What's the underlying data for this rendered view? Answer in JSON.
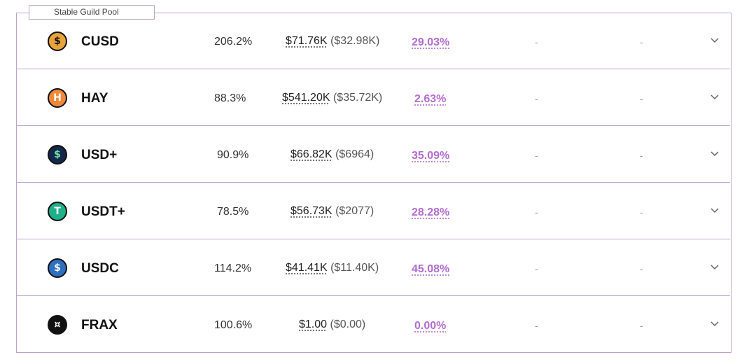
{
  "pool": {
    "title": "Stable Guild Pool"
  },
  "rows": [
    {
      "name": "CUSD",
      "ratio": "206.2%",
      "tvl": "$71.76K",
      "tvl_sub": "($32.98K)",
      "apr": "29.03%",
      "col5": "-",
      "col6": "-",
      "icon": "cusd-icon",
      "icon_bg": "#e8a33b",
      "icon_glyph": "$",
      "icon_fg": "#111"
    },
    {
      "name": "HAY",
      "ratio": "88.3%",
      "tvl": "$541.20K",
      "tvl_sub": "($35.72K)",
      "apr": "2.63%",
      "col5": "-",
      "col6": "-",
      "icon": "hay-icon",
      "icon_bg": "#f08a3a",
      "icon_glyph": "H",
      "icon_fg": "#fff"
    },
    {
      "name": "USD+",
      "ratio": "90.9%",
      "tvl": "$66.82K",
      "tvl_sub": "($6964)",
      "apr": "35.09%",
      "col5": "-",
      "col6": "-",
      "icon": "usd-plus-icon",
      "icon_bg": "#14284b",
      "icon_glyph": "$",
      "icon_fg": "#6fe3a2"
    },
    {
      "name": "USDT+",
      "ratio": "78.5%",
      "tvl": "$56.73K",
      "tvl_sub": "($2077)",
      "apr": "28.28%",
      "col5": "-",
      "col6": "-",
      "icon": "usdt-plus-icon",
      "icon_bg": "#1fb08a",
      "icon_glyph": "T",
      "icon_fg": "#fff"
    },
    {
      "name": "USDC",
      "ratio": "114.2%",
      "tvl": "$41.41K",
      "tvl_sub": "($11.40K)",
      "apr": "45.08%",
      "col5": "-",
      "col6": "-",
      "icon": "usdc-icon",
      "icon_bg": "#2e6fbf",
      "icon_glyph": "$",
      "icon_fg": "#fff"
    },
    {
      "name": "FRAX",
      "ratio": "100.6%",
      "tvl": "$1.00",
      "tvl_sub": "($0.00)",
      "apr": "0.00%",
      "col5": "-",
      "col6": "-",
      "icon": "frax-icon",
      "icon_bg": "#111111",
      "icon_glyph": "¤",
      "icon_fg": "#fff"
    }
  ],
  "colors": {
    "border": "#b9a4cc",
    "apr": "#b36cd0"
  }
}
